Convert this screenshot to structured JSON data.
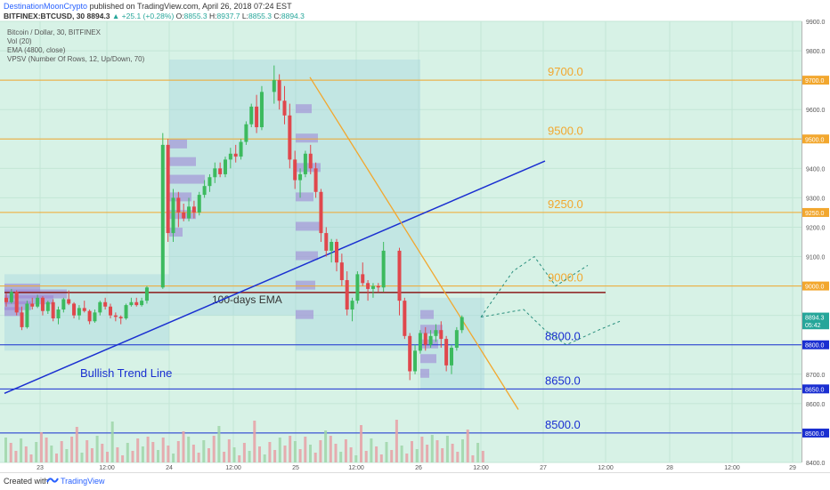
{
  "header": {
    "author": "DestinationMoonCrypto",
    "published": "published on TradingView.com, April 26, 2018 07:24 EST",
    "symbol": "BITFINEX:BTCUSD, 30",
    "last": "8894.3",
    "change": "▲ +25.1 (+0.28%)",
    "o_label": "O:",
    "o": "8855.3",
    "h_label": "H:",
    "h": "8937.7",
    "l_label": "L:",
    "l": "8855.3",
    "c_label": "C:",
    "c": "8894.3"
  },
  "legend": {
    "title": "Bitcoin / Dollar, 30, BITFINEX",
    "vol": "Vol (20)",
    "ema": "EMA (4800, close)",
    "vpsv": "VPSV (Number Of Rows, 12, Up/Down, 70)"
  },
  "footer": {
    "created_with": "Created with",
    "brand": "TradingView"
  },
  "chart_data": {
    "type": "line",
    "title": "Bitcoin / Dollar, 30, BITFINEX",
    "ylim": [
      8400,
      9900
    ],
    "y_ticks": [
      8400,
      8500,
      8600,
      8700,
      8800,
      8900,
      9000,
      9100,
      9200,
      9300,
      9400,
      9500,
      9600,
      9700,
      9800,
      9900
    ],
    "x_ticks": [
      "23",
      "12:00",
      "24",
      "12:00",
      "25",
      "12:00",
      "26",
      "12:00",
      "27",
      "12:00",
      "28",
      "12:00",
      "29"
    ],
    "grid": true,
    "annotations": {
      "levels": [
        {
          "label": "9700.0",
          "value": 9700,
          "color": "#f2a72e"
        },
        {
          "label": "9500.0",
          "value": 9500,
          "color": "#f2a72e"
        },
        {
          "label": "9250.0",
          "value": 9250,
          "color": "#f2a72e"
        },
        {
          "label": "9000.0",
          "value": 9000,
          "color": "#f2a72e"
        },
        {
          "label": "8800.0",
          "value": 8800,
          "color": "#1a2fd1"
        },
        {
          "label": "8650.0",
          "value": 8650,
          "color": "#1a2fd1"
        },
        {
          "label": "8500.0",
          "value": 8500,
          "color": "#1a2fd1"
        }
      ],
      "price_tags": [
        {
          "label": "9700.0",
          "value": 9700,
          "color": "#f2a72e"
        },
        {
          "label": "9500.0",
          "value": 9500,
          "color": "#f2a72e"
        },
        {
          "label": "9250.0",
          "value": 9250,
          "color": "#f2a72e"
        },
        {
          "label": "9000.0",
          "value": 9000,
          "color": "#f2a72e"
        },
        {
          "label": "8894.3",
          "value": 8894.3,
          "color": "#26a69a"
        },
        {
          "label": "05:42",
          "value": 8868,
          "color": "#26a69a"
        },
        {
          "label": "8800.0",
          "value": 8800,
          "color": "#1a2fd1"
        },
        {
          "label": "8650.0",
          "value": 8650,
          "color": "#1a2fd1"
        },
        {
          "label": "8500.0",
          "value": 8500,
          "color": "#1a2fd1"
        }
      ],
      "texts": [
        {
          "text": "100-days EMA"
        },
        {
          "text": "Bullish Trend Line"
        }
      ]
    },
    "trendlines": [
      {
        "name": "bullish-trend-line",
        "color": "#1a2fd1",
        "from": [
          0,
          8635
        ],
        "to": [
          87,
          9425
        ]
      },
      {
        "name": "descending-resistance",
        "color": "#f2a72e",
        "from": [
          50,
          9710
        ],
        "to": [
          84,
          8580
        ]
      }
    ],
    "ema_100_value": 8990,
    "candles": [
      [
        8960,
        8975,
        8930,
        8945
      ],
      [
        8945,
        8990,
        8940,
        8980
      ],
      [
        8980,
        8985,
        8900,
        8910
      ],
      [
        8910,
        8930,
        8850,
        8860
      ],
      [
        8860,
        8950,
        8855,
        8940
      ],
      [
        8940,
        8960,
        8920,
        8930
      ],
      [
        8930,
        8970,
        8925,
        8960
      ],
      [
        8960,
        8965,
        8900,
        8915
      ],
      [
        8915,
        8950,
        8905,
        8945
      ],
      [
        8945,
        8955,
        8880,
        8890
      ],
      [
        8890,
        8930,
        8870,
        8920
      ],
      [
        8920,
        8960,
        8910,
        8955
      ],
      [
        8955,
        8985,
        8935,
        8940
      ],
      [
        8940,
        8945,
        8890,
        8900
      ],
      [
        8900,
        8935,
        8885,
        8925
      ],
      [
        8925,
        8950,
        8910,
        8915
      ],
      [
        8915,
        8920,
        8870,
        8880
      ],
      [
        8880,
        8920,
        8875,
        8910
      ],
      [
        8910,
        8950,
        8900,
        8945
      ],
      [
        8945,
        8960,
        8920,
        8930
      ],
      [
        8930,
        8940,
        8890,
        8900
      ],
      [
        8900,
        8910,
        8880,
        8895
      ],
      [
        8895,
        8900,
        8870,
        8890
      ],
      [
        8890,
        8940,
        8885,
        8935
      ],
      [
        8935,
        8960,
        8930,
        8945
      ],
      [
        8945,
        8960,
        8930,
        8935
      ],
      [
        8935,
        8960,
        8930,
        8950
      ],
      [
        8950,
        9000,
        8940,
        8995
      ],
      [
        8995,
        9520,
        8990,
        9480
      ],
      [
        9480,
        9500,
        9150,
        9180
      ],
      [
        9180,
        9330,
        9150,
        9300
      ],
      [
        9300,
        9320,
        9200,
        9250
      ],
      [
        9250,
        9280,
        9220,
        9230
      ],
      [
        9230,
        9300,
        9220,
        9270
      ],
      [
        9270,
        9290,
        9230,
        9250
      ],
      [
        9250,
        9320,
        9240,
        9310
      ],
      [
        9310,
        9360,
        9300,
        9340
      ],
      [
        9340,
        9380,
        9320,
        9370
      ],
      [
        9370,
        9420,
        9350,
        9400
      ],
      [
        9400,
        9420,
        9370,
        9380
      ],
      [
        9380,
        9440,
        9370,
        9430
      ],
      [
        9430,
        9470,
        9400,
        9450
      ],
      [
        9450,
        9480,
        9420,
        9440
      ],
      [
        9440,
        9500,
        9430,
        9490
      ],
      [
        9490,
        9560,
        9480,
        9550
      ],
      [
        9550,
        9620,
        9540,
        9610
      ],
      [
        9610,
        9650,
        9520,
        9540
      ],
      [
        9540,
        9680,
        9530,
        9660
      ],
      [
        9660,
        9750,
        9620,
        9700
      ],
      [
        9700,
        9720,
        9600,
        9630
      ],
      [
        9630,
        9680,
        9550,
        9580
      ],
      [
        9580,
        9620,
        9400,
        9430
      ],
      [
        9430,
        9460,
        9330,
        9360
      ],
      [
        9360,
        9400,
        9300,
        9380
      ],
      [
        9380,
        9460,
        9370,
        9450
      ],
      [
        9450,
        9480,
        9380,
        9400
      ],
      [
        9400,
        9420,
        9300,
        9320
      ],
      [
        9320,
        9330,
        9150,
        9180
      ],
      [
        9180,
        9200,
        9100,
        9120
      ],
      [
        9120,
        9160,
        9080,
        9150
      ],
      [
        9150,
        9160,
        9050,
        9080
      ],
      [
        9080,
        9110,
        9000,
        9020
      ],
      [
        9020,
        9050,
        8900,
        8920
      ],
      [
        8920,
        8960,
        8880,
        8950
      ],
      [
        8950,
        9050,
        8940,
        9040
      ],
      [
        9040,
        9080,
        9000,
        9010
      ],
      [
        9010,
        9020,
        8950,
        8990
      ],
      [
        8990,
        9010,
        8960,
        9000
      ],
      [
        9000,
        9010,
        8980,
        8995
      ],
      [
        8995,
        9150,
        8980,
        9120
      ],
      [
        9120,
        9130,
        8900,
        8950
      ],
      [
        8950,
        8960,
        8820,
        8830
      ],
      [
        8830,
        8840,
        8680,
        8710
      ],
      [
        8710,
        8800,
        8700,
        8780
      ],
      [
        8780,
        8850,
        8770,
        8840
      ],
      [
        8840,
        8860,
        8780,
        8800
      ],
      [
        8800,
        8850,
        8790,
        8830
      ],
      [
        8830,
        8870,
        8810,
        8850
      ],
      [
        8850,
        8880,
        8790,
        8820
      ],
      [
        8820,
        8830,
        8710,
        8730
      ],
      [
        8730,
        8800,
        8700,
        8790
      ],
      [
        8790,
        8860,
        8780,
        8850
      ],
      [
        8850,
        8900,
        8840,
        8894.3
      ]
    ],
    "projections": [
      {
        "name": "projection-up",
        "points": [
          [
            82,
            8894.3
          ],
          [
            85,
            9050
          ],
          [
            87,
            9100
          ],
          [
            89,
            9000
          ],
          [
            92,
            9070
          ]
        ]
      },
      {
        "name": "projection-down",
        "points": [
          [
            82,
            8894.3
          ],
          [
            86,
            8920
          ],
          [
            88,
            8850
          ],
          [
            90,
            8800
          ],
          [
            93,
            8850
          ],
          [
            95,
            8880
          ]
        ]
      }
    ]
  }
}
